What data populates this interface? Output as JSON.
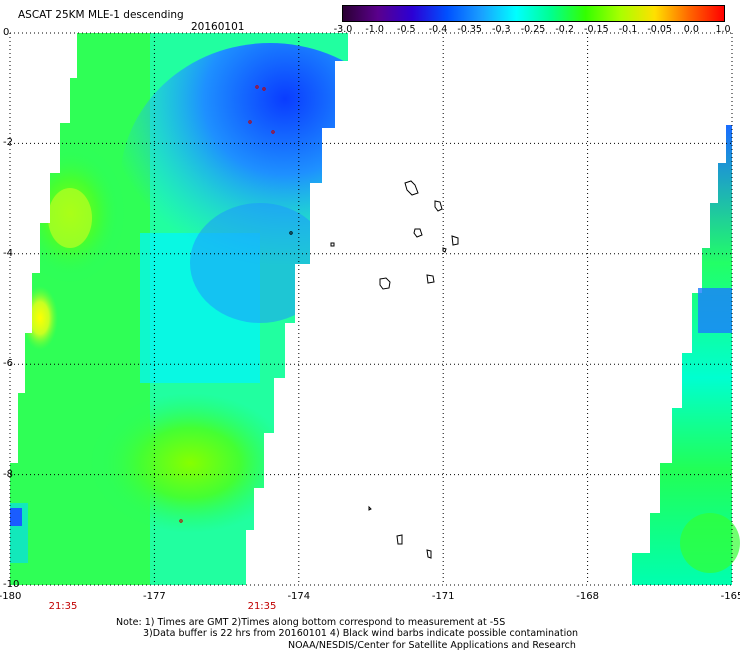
{
  "header": {
    "title": "ASCAT 25KM MLE-1 descending",
    "date": "20160101"
  },
  "colorbar": {
    "ticks": [
      "-3.0",
      "-1.0",
      "-0.5",
      "-0.4",
      "-0.35",
      "-0.3",
      "-0.25",
      "-0.2",
      "-0.15",
      "-0.1",
      "-0.05",
      "0.0",
      "1.0"
    ],
    "colors": [
      "#2b0033",
      "#5a008c",
      "#2c00d4",
      "#0050ff",
      "#1aa0ff",
      "#00ffff",
      "#00ff90",
      "#33ff00",
      "#a8ff00",
      "#ffe000",
      "#ff6600",
      "#ff0000"
    ]
  },
  "axes": {
    "lon_labels": [
      "-180",
      "-177",
      "-174",
      "-171",
      "-168",
      "-165"
    ],
    "lat_labels": [
      "0",
      "-2",
      "-4",
      "-6",
      "-8",
      "-10"
    ],
    "lon_range": [
      -180,
      -165
    ],
    "lat_range": [
      0,
      -10
    ]
  },
  "swath_times": [
    "21:35",
    "21:35"
  ],
  "notes": [
    "Note: 1) Times are GMT 2)Times along bottom correspond to measurement at -5S",
    "3)Data buffer is 22 hrs from 20160101 4) Black wind barbs indicate possible contamination",
    "NOAA/NESDIS/Center for Satellite Applications and Research"
  ]
}
